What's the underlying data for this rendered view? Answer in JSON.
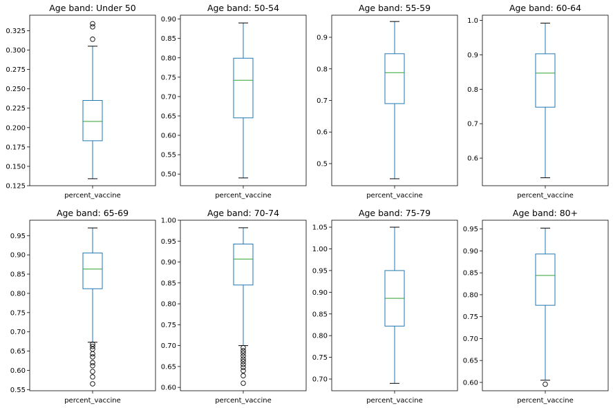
{
  "colors": {
    "box": "#1f77b4",
    "median": "#2ca02c",
    "axis": "#000000",
    "flier": "#000000"
  },
  "chart_data": [
    {
      "type": "box",
      "title": "Age band: Under 50",
      "xlabel": "percent_vaccine",
      "ylim": [
        0.125,
        0.345
      ],
      "yticks": [
        0.125,
        0.15,
        0.175,
        0.2,
        0.225,
        0.25,
        0.275,
        0.3,
        0.325
      ],
      "ytick_labels": [
        "0.125",
        "0.150",
        "0.175",
        "0.200",
        "0.225",
        "0.250",
        "0.275",
        "0.300",
        "0.325"
      ],
      "box": {
        "whisker_low": 0.134,
        "q1": 0.183,
        "median": 0.208,
        "q3": 0.235,
        "whisker_high": 0.305
      },
      "fliers": [
        0.314,
        0.33,
        0.334
      ]
    },
    {
      "type": "box",
      "title": "Age band: 50-54",
      "xlabel": "percent_vaccine",
      "ylim": [
        0.47,
        0.91
      ],
      "yticks": [
        0.5,
        0.55,
        0.6,
        0.65,
        0.7,
        0.75,
        0.8,
        0.85,
        0.9
      ],
      "ytick_labels": [
        "0.50",
        "0.55",
        "0.60",
        "0.65",
        "0.70",
        "0.75",
        "0.80",
        "0.85",
        "0.90"
      ],
      "box": {
        "whisker_low": 0.49,
        "q1": 0.645,
        "median": 0.742,
        "q3": 0.799,
        "whisker_high": 0.89
      },
      "fliers": []
    },
    {
      "type": "box",
      "title": "Age band: 55-59",
      "xlabel": "percent_vaccine",
      "ylim": [
        0.43,
        0.97
      ],
      "yticks": [
        0.5,
        0.6,
        0.7,
        0.8,
        0.9
      ],
      "ytick_labels": [
        "0.5",
        "0.6",
        "0.7",
        "0.8",
        "0.9"
      ],
      "box": {
        "whisker_low": 0.452,
        "q1": 0.69,
        "median": 0.788,
        "q3": 0.848,
        "whisker_high": 0.95
      },
      "fliers": []
    },
    {
      "type": "box",
      "title": "Age band: 60-64",
      "xlabel": "percent_vaccine",
      "ylim": [
        0.52,
        1.015
      ],
      "yticks": [
        0.6,
        0.7,
        0.8,
        0.9,
        1.0
      ],
      "ytick_labels": [
        "0.6",
        "0.7",
        "0.8",
        "0.9",
        "1.0"
      ],
      "box": {
        "whisker_low": 0.543,
        "q1": 0.748,
        "median": 0.847,
        "q3": 0.903,
        "whisker_high": 0.992
      },
      "fliers": []
    },
    {
      "type": "box",
      "title": "Age band: 65-69",
      "xlabel": "percent_vaccine",
      "ylim": [
        0.547,
        0.99
      ],
      "yticks": [
        0.55,
        0.6,
        0.65,
        0.7,
        0.75,
        0.8,
        0.85,
        0.9,
        0.95
      ],
      "ytick_labels": [
        "0.55",
        "0.60",
        "0.65",
        "0.70",
        "0.75",
        "0.80",
        "0.85",
        "0.90",
        "0.95"
      ],
      "box": {
        "whisker_low": 0.673,
        "q1": 0.812,
        "median": 0.863,
        "q3": 0.905,
        "whisker_high": 0.97
      },
      "fliers": [
        0.565,
        0.583,
        0.597,
        0.612,
        0.62,
        0.635,
        0.643,
        0.655,
        0.662,
        0.668
      ]
    },
    {
      "type": "box",
      "title": "Age band: 70-74",
      "xlabel": "percent_vaccine",
      "ylim": [
        0.592,
        1.0
      ],
      "yticks": [
        0.6,
        0.65,
        0.7,
        0.75,
        0.8,
        0.85,
        0.9,
        0.95,
        1.0
      ],
      "ytick_labels": [
        "0.60",
        "0.65",
        "0.70",
        "0.75",
        "0.80",
        "0.85",
        "0.90",
        "0.95",
        "1.00"
      ],
      "box": {
        "whisker_low": 0.7,
        "q1": 0.845,
        "median": 0.907,
        "q3": 0.943,
        "whisker_high": 0.982
      },
      "fliers": [
        0.61,
        0.628,
        0.64,
        0.648,
        0.655,
        0.662,
        0.668,
        0.675,
        0.682,
        0.688,
        0.695
      ]
    },
    {
      "type": "box",
      "title": "Age band: 75-79",
      "xlabel": "percent_vaccine",
      "ylim": [
        0.673,
        1.066
      ],
      "yticks": [
        0.7,
        0.75,
        0.8,
        0.85,
        0.9,
        0.95,
        1.0,
        1.05
      ],
      "ytick_labels": [
        "0.70",
        "0.75",
        "0.80",
        "0.85",
        "0.90",
        "0.95",
        "1.00",
        "1.05"
      ],
      "box": {
        "whisker_low": 0.69,
        "q1": 0.822,
        "median": 0.886,
        "q3": 0.95,
        "whisker_high": 1.05
      },
      "fliers": []
    },
    {
      "type": "box",
      "title": "Age band: 80+",
      "xlabel": "percent_vaccine",
      "ylim": [
        0.581,
        0.97
      ],
      "yticks": [
        0.6,
        0.65,
        0.7,
        0.75,
        0.8,
        0.85,
        0.9,
        0.95
      ],
      "ytick_labels": [
        "0.60",
        "0.65",
        "0.70",
        "0.75",
        "0.80",
        "0.85",
        "0.90",
        "0.95"
      ],
      "box": {
        "whisker_low": 0.605,
        "q1": 0.776,
        "median": 0.844,
        "q3": 0.893,
        "whisker_high": 0.952
      },
      "fliers": [
        0.596
      ]
    }
  ]
}
